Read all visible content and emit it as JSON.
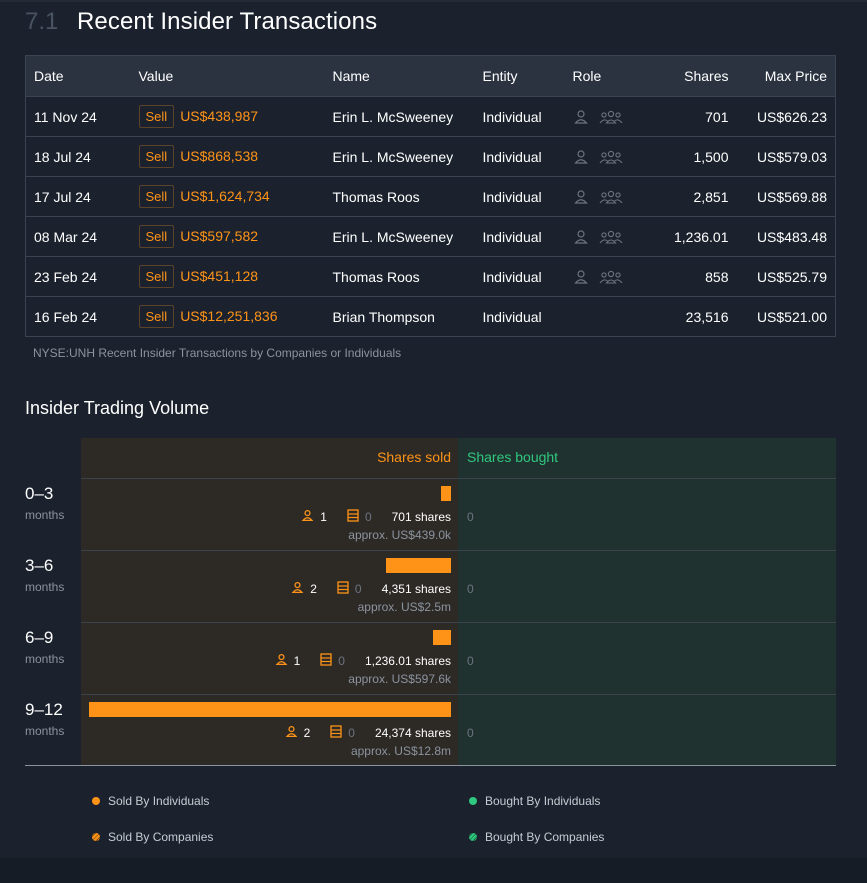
{
  "section": {
    "number": "7.1",
    "title": "Recent Insider Transactions"
  },
  "table": {
    "headers": {
      "date": "Date",
      "value": "Value",
      "name": "Name",
      "entity": "Entity",
      "role": "Role",
      "shares": "Shares",
      "max_price": "Max Price"
    },
    "rows": [
      {
        "date": "11 Nov 24",
        "type": "Sell",
        "value": "US$438,987",
        "name": "Erin L. McSweeney",
        "entity": "Individual",
        "roles": [
          "person-icon",
          "group-icon"
        ],
        "shares": "701",
        "max_price": "US$626.23"
      },
      {
        "date": "18 Jul 24",
        "type": "Sell",
        "value": "US$868,538",
        "name": "Erin L. McSweeney",
        "entity": "Individual",
        "roles": [
          "person-icon",
          "group-icon"
        ],
        "shares": "1,500",
        "max_price": "US$579.03"
      },
      {
        "date": "17 Jul 24",
        "type": "Sell",
        "value": "US$1,624,734",
        "name": "Thomas Roos",
        "entity": "Individual",
        "roles": [
          "person-icon",
          "group-icon"
        ],
        "shares": "2,851",
        "max_price": "US$569.88"
      },
      {
        "date": "08 Mar 24",
        "type": "Sell",
        "value": "US$597,582",
        "name": "Erin L. McSweeney",
        "entity": "Individual",
        "roles": [
          "person-icon",
          "group-icon"
        ],
        "shares": "1,236.01",
        "max_price": "US$483.48"
      },
      {
        "date": "23 Feb 24",
        "type": "Sell",
        "value": "US$451,128",
        "name": "Thomas Roos",
        "entity": "Individual",
        "roles": [
          "person-icon",
          "group-icon"
        ],
        "shares": "858",
        "max_price": "US$525.79"
      },
      {
        "date": "16 Feb 24",
        "type": "Sell",
        "value": "US$12,251,836",
        "name": "Brian Thompson",
        "entity": "Individual",
        "roles": [],
        "shares": "23,516",
        "max_price": "US$521.00"
      }
    ],
    "caption": "NYSE:UNH Recent Insider Transactions by Companies or Individuals"
  },
  "volume": {
    "title": "Insider Trading Volume",
    "sold_header": "Shares sold",
    "bought_header": "Shares bought",
    "colors": {
      "sold": "#ff9317",
      "bought": "#2fc87e"
    },
    "periods": [
      {
        "range": "0–3",
        "unit": "months",
        "individuals": "1",
        "companies": "0",
        "shares_label": "701 shares",
        "approx": "approx. US$439.0k",
        "shares_value": 701,
        "bought": "0"
      },
      {
        "range": "3–6",
        "unit": "months",
        "individuals": "2",
        "companies": "0",
        "shares_label": "4,351 shares",
        "approx": "approx. US$2.5m",
        "shares_value": 4351,
        "bought": "0"
      },
      {
        "range": "6–9",
        "unit": "months",
        "individuals": "1",
        "companies": "0",
        "shares_label": "1,236.01 shares",
        "approx": "approx. US$597.6k",
        "shares_value": 1236.01,
        "bought": "0"
      },
      {
        "range": "9–12",
        "unit": "months",
        "individuals": "2",
        "companies": "0",
        "shares_label": "24,374 shares",
        "approx": "approx. US$12.8m",
        "shares_value": 24374,
        "bought": "0"
      }
    ],
    "legend": {
      "sold_individuals": "Sold By Individuals",
      "bought_individuals": "Bought By Individuals",
      "sold_companies": "Sold By Companies",
      "bought_companies": "Bought By Companies"
    }
  }
}
